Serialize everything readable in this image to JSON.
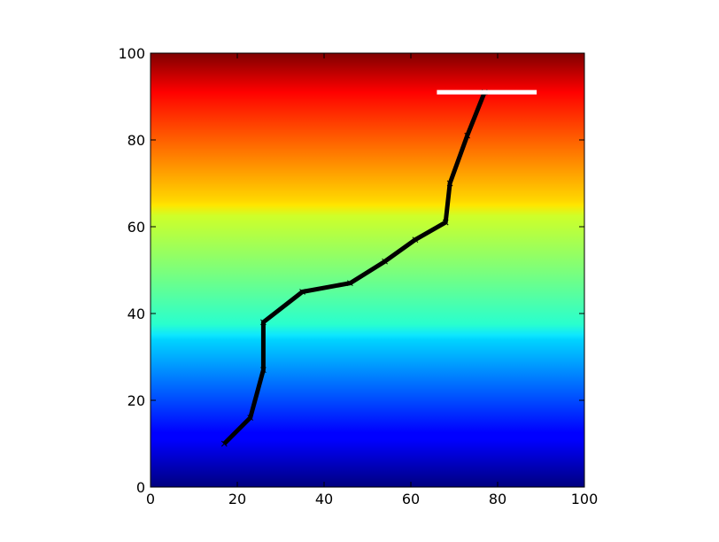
{
  "chart_data": {
    "type": "line",
    "title": "",
    "xlabel": "",
    "ylabel": "",
    "xlim": [
      0,
      100
    ],
    "ylim": [
      0,
      100
    ],
    "grid": false,
    "background": {
      "type": "vertical-gradient",
      "colormap": "jet",
      "values_from_y": [
        0,
        100
      ]
    },
    "xticks": [
      "0",
      "20",
      "40",
      "60",
      "80",
      "100"
    ],
    "yticks": [
      "0",
      "20",
      "40",
      "60",
      "80",
      "100"
    ],
    "series": [
      {
        "color": "#000000",
        "marker": "x",
        "x": [
          17,
          23,
          26,
          26,
          35,
          46,
          54,
          61,
          68,
          69,
          73,
          77
        ],
        "y": [
          10,
          16,
          27,
          38,
          45,
          47,
          52,
          57,
          61,
          70,
          81,
          91
        ]
      },
      {
        "color": "#ffffff",
        "x": [
          66,
          89
        ],
        "y": [
          91,
          91
        ]
      }
    ]
  }
}
